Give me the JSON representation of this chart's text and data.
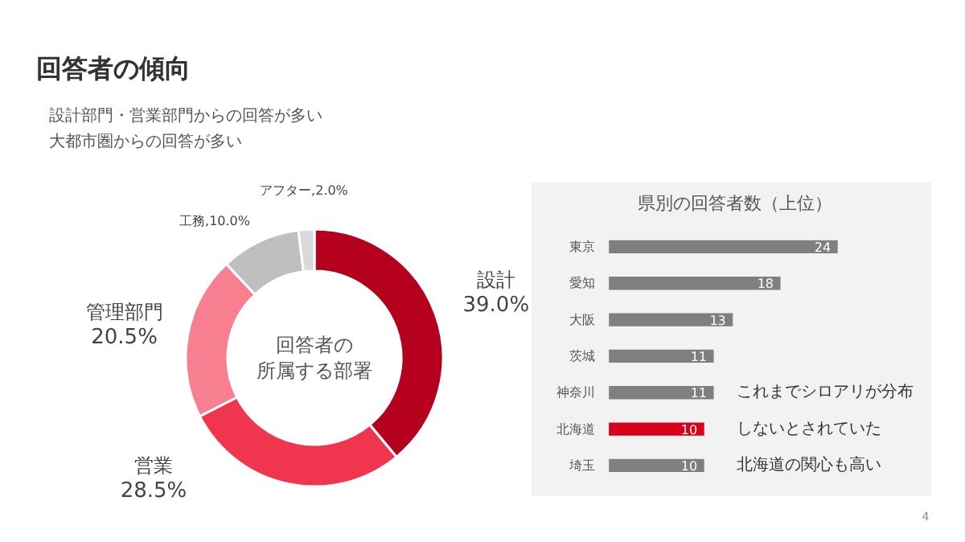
{
  "chart_data": [
    {
      "type": "donut",
      "title": "回答者の傾向",
      "subtitle": "設計部門・営業部門からの回答が多い",
      "categories": [
        "設計",
        "営業",
        "管理部門",
        "工務",
        "アフター"
      ],
      "values": [
        39.0,
        28.5,
        20.5,
        10.0,
        2.0
      ],
      "colors": [
        "#b5001e",
        "#f0364f",
        "#f77f8f",
        "#bfbfbf",
        "#d9d9d9"
      ],
      "value_labels": [
        "39.0%",
        "28.5%",
        "20.5%",
        "10.0%",
        "2.0%"
      ],
      "annotations": [
        "大都市圏からの回答が多い",
        "回答者の",
        "所属する部署"
      ]
    },
    {
      "type": "bar",
      "orientation": "horizontal",
      "title": "県別の回答者数（上位）",
      "categories": [
        "東京",
        "愛知",
        "大阪",
        "茨城",
        "神奈川",
        "北海道",
        "埼玉"
      ],
      "values": [
        24,
        18,
        13,
        11,
        11,
        10,
        10
      ],
      "colors": [
        "#7f7f7f",
        "#7f7f7f",
        "#7f7f7f",
        "#7f7f7f",
        "#7f7f7f",
        "#d9001b",
        "#7f7f7f"
      ],
      "data_labels": true,
      "annotations": [
        "これまでシロアリが分布",
        "しないとされていた",
        "北海道の関心も高い",
        "4"
      ]
    }
  ]
}
